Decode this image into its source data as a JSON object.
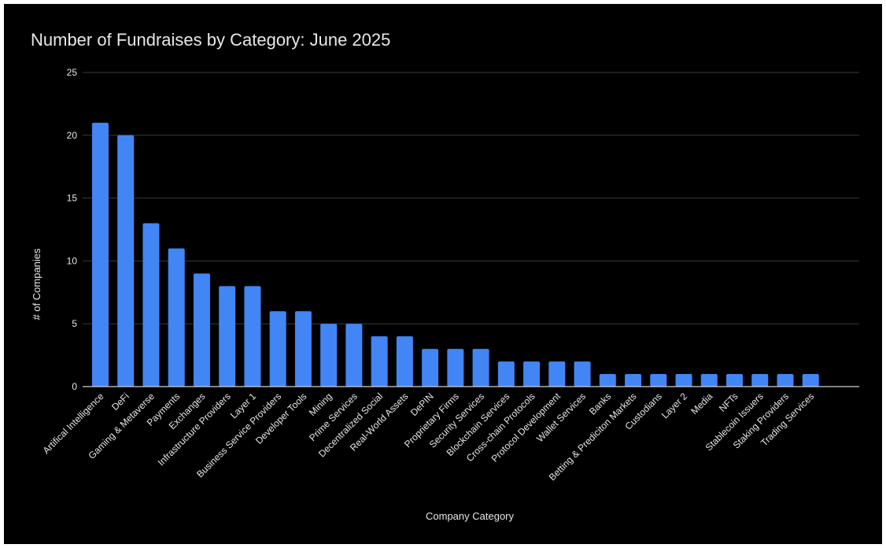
{
  "chart_data": {
    "type": "bar",
    "title": "Number of Fundraises by Category: June 2025",
    "xlabel": "Company Category",
    "ylabel": "# of Companies",
    "ylim": [
      0,
      25
    ],
    "yticks": [
      "0",
      "5",
      "10",
      "15",
      "20",
      "25"
    ],
    "grid": true,
    "legend": "none",
    "categories": [
      "Artifical Intelligence",
      "DeFi",
      "Gaming & Metaverse",
      "Payments",
      "Exchanges",
      "Infrastructure Providers",
      "Layer 1",
      "Business Service Providers",
      "Developer Tools",
      "Mining",
      "Prime Services",
      "Decentralized Social",
      "Real-World Assets",
      "DePIN",
      "Proprietary Firms",
      "Security Services",
      "Blockchain Services",
      "Cross-chain Protocols",
      "Protocol Development",
      "Wallet Services",
      "Banks",
      "Betting & Prediciton Markets",
      "Custodians",
      "Layer 2",
      "Media",
      "NFTs",
      "Stablecoin Issuers",
      "Staking Providers",
      "Trading Services"
    ],
    "values": [
      21,
      20,
      13,
      11,
      9,
      8,
      8,
      6,
      6,
      5,
      5,
      4,
      4,
      3,
      3,
      3,
      2,
      2,
      2,
      2,
      1,
      1,
      1,
      1,
      1,
      1,
      1,
      1,
      1
    ],
    "colors": {
      "background": "#000000",
      "bar": "#4285f4",
      "grid": "#3a3a3a",
      "baseline": "#d0d0d0",
      "text": "#e6e6e6"
    }
  }
}
